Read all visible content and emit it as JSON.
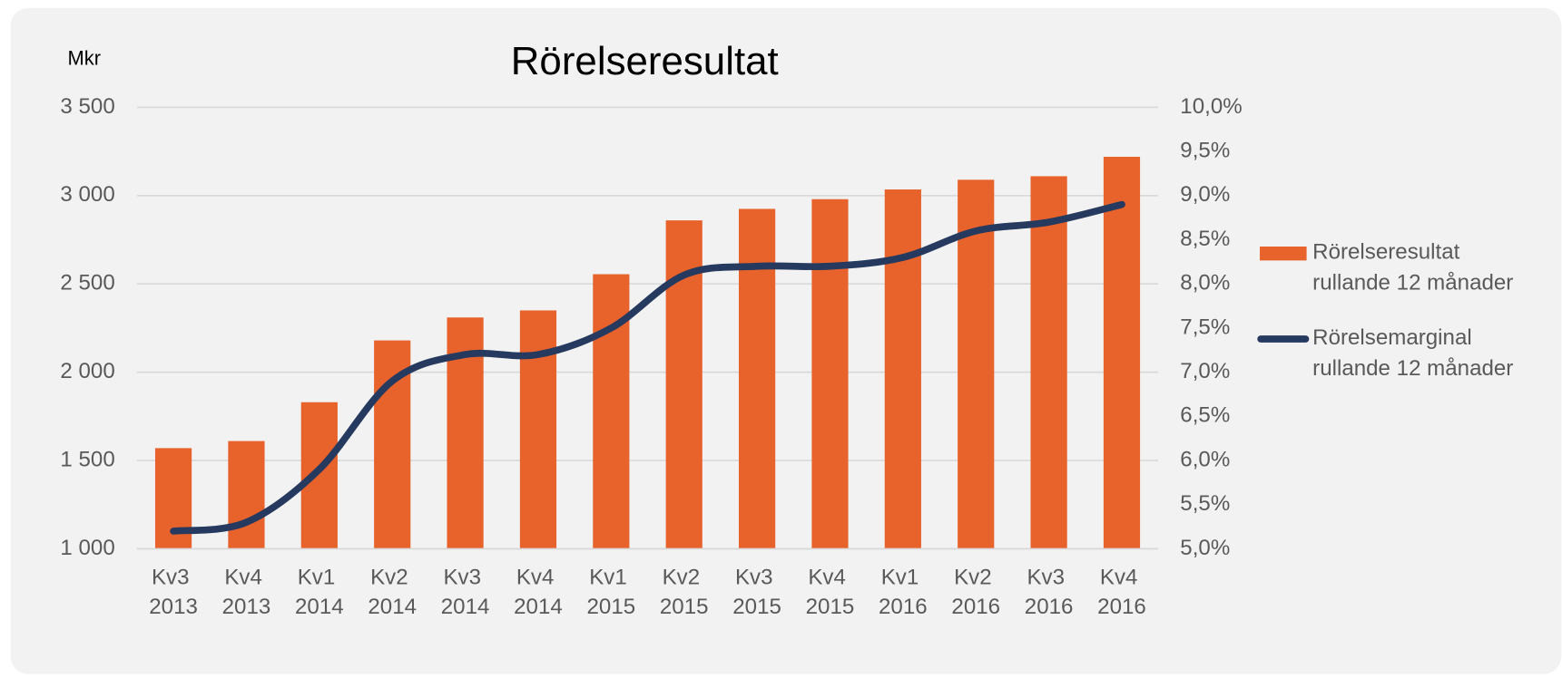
{
  "chart_data": {
    "type": "bar-line",
    "title": "Rörelseresultat",
    "y_label": "Mkr",
    "categories": [
      "Kv3 2013",
      "Kv4 2013",
      "Kv1 2014",
      "Kv2 2014",
      "Kv3 2014",
      "Kv4 2014",
      "Kv1 2015",
      "Kv2 2015",
      "Kv3 2015",
      "Kv4 2015",
      "Kv1 2016",
      "Kv2 2016",
      "Kv3 2016",
      "Kv4 2016"
    ],
    "series": [
      {
        "name": "Rörelseresultat rullande 12 månader",
        "type": "bar",
        "color": "#e8622c",
        "values": [
          1570,
          1610,
          1830,
          2180,
          2310,
          2350,
          2555,
          2860,
          2925,
          2980,
          3035,
          3090,
          3110,
          3220
        ]
      },
      {
        "name": "Rörelsemarginal rullande 12 månader",
        "type": "line",
        "axis": "y2",
        "color": "#253a5e",
        "smooth": true,
        "values": [
          5.2,
          5.3,
          5.9,
          6.9,
          7.2,
          7.2,
          7.5,
          8.1,
          8.2,
          8.2,
          8.3,
          8.6,
          8.7,
          8.9
        ]
      }
    ],
    "ylim": [
      1000,
      3500
    ],
    "yticks": [
      {
        "value": 1000,
        "label": "1 000"
      },
      {
        "value": 1500,
        "label": "1 500"
      },
      {
        "value": 2000,
        "label": "2 000"
      },
      {
        "value": 2500,
        "label": "2 500"
      },
      {
        "value": 3000,
        "label": "3 000"
      },
      {
        "value": 3500,
        "label": "3 500"
      }
    ],
    "y2lim": [
      5,
      10
    ],
    "y2ticks": [
      {
        "value": 5,
        "label": "5,0%"
      },
      {
        "value": 5.5,
        "label": "5,5%"
      },
      {
        "value": 6,
        "label": "6,0%"
      },
      {
        "value": 6.5,
        "label": "6,5%"
      },
      {
        "value": 7,
        "label": "7,0%"
      },
      {
        "value": 7.5,
        "label": "7,5%"
      },
      {
        "value": 8,
        "label": "8,0%"
      },
      {
        "value": 8.5,
        "label": "8,5%"
      },
      {
        "value": 9,
        "label": "9,0%"
      },
      {
        "value": 9.5,
        "label": "9,5%"
      },
      {
        "value": 10,
        "label": "10,0%"
      }
    ],
    "grid": true,
    "legend": "right"
  }
}
